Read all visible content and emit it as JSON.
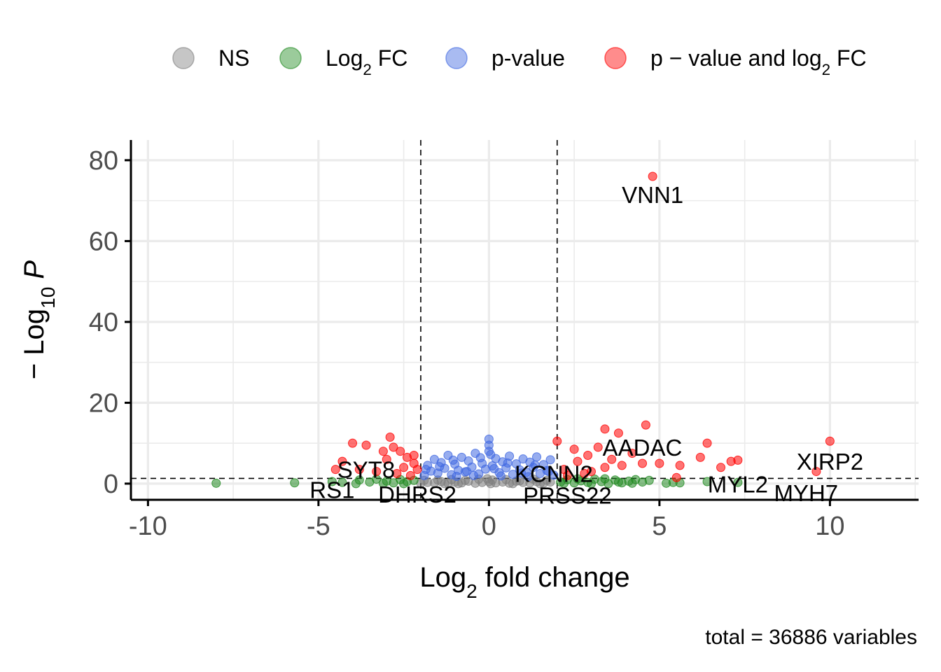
{
  "chart_data": {
    "type": "scatter",
    "xlabel": "Log",
    "xlabel_sub": "2",
    "xlabel_rest": " fold change",
    "ylabel_pre": "− Log",
    "ylabel_sub": "10",
    "ylabel_italic": "P",
    "caption": "total = 36886 variables",
    "xlim": [
      -10.5,
      12.6
    ],
    "ylim": [
      -4,
      85
    ],
    "x_ticks": [
      -10,
      -5,
      0,
      5,
      10
    ],
    "x_tick_labels": [
      "-10",
      "-5",
      "0",
      "5",
      "10"
    ],
    "y_ticks": [
      0,
      20,
      40,
      60,
      80
    ],
    "y_tick_labels": [
      "0",
      "20",
      "40",
      "60",
      "80"
    ],
    "fc_cutoff": 2,
    "p_cutoff_log10": 1.3,
    "grid": true,
    "legend_position": "top",
    "legend": [
      {
        "key": "NS",
        "text": "NS",
        "sub": "",
        "tail": "",
        "color": "#808080"
      },
      {
        "key": "FC",
        "text": "Log",
        "sub": "2",
        "tail": " FC",
        "color": "#228b22"
      },
      {
        "key": "P",
        "text": "p-value",
        "sub": "",
        "tail": "",
        "color": "#4169e1"
      },
      {
        "key": "PFC",
        "text": "p − value and log",
        "sub": "2",
        "tail": " FC",
        "color": "#ff0000"
      }
    ],
    "series": {
      "NS": [
        [
          -2.0,
          0.1
        ],
        [
          -1.8,
          0.3
        ],
        [
          -1.6,
          0.2
        ],
        [
          -1.4,
          0.5
        ],
        [
          -1.2,
          0.1
        ],
        [
          -1.0,
          0.4
        ],
        [
          -0.8,
          0.2
        ],
        [
          -0.6,
          0.6
        ],
        [
          -0.4,
          0.1
        ],
        [
          -0.2,
          0.3
        ],
        [
          0.0,
          0.5
        ],
        [
          0.2,
          0.2
        ],
        [
          0.4,
          0.4
        ],
        [
          0.6,
          0.1
        ],
        [
          0.8,
          0.6
        ],
        [
          1.0,
          0.3
        ],
        [
          1.2,
          0.2
        ],
        [
          1.4,
          0.5
        ],
        [
          1.6,
          0.1
        ],
        [
          1.8,
          0.4
        ],
        [
          -1.9,
          0.8
        ],
        [
          -1.5,
          0.9
        ],
        [
          -1.1,
          1.0
        ],
        [
          -0.7,
          0.8
        ],
        [
          -0.3,
          1.1
        ],
        [
          0.1,
          0.9
        ],
        [
          0.5,
          1.0
        ],
        [
          0.9,
          0.7
        ],
        [
          1.3,
          1.1
        ],
        [
          1.7,
          0.8
        ],
        [
          -0.05,
          1.2
        ],
        [
          0.05,
          0.0
        ],
        [
          -1.3,
          0.0
        ],
        [
          1.5,
          0.0
        ],
        [
          -0.9,
          0.0
        ],
        [
          0.7,
          0.0
        ]
      ],
      "FC": [
        [
          -8.0,
          0.1
        ],
        [
          -5.7,
          0.2
        ],
        [
          -4.6,
          0.5
        ],
        [
          -4.3,
          0.3
        ],
        [
          -3.8,
          0.9
        ],
        [
          -3.5,
          0.4
        ],
        [
          -3.3,
          1.1
        ],
        [
          -3.0,
          0.6
        ],
        [
          -2.8,
          0.2
        ],
        [
          -2.6,
          1.0
        ],
        [
          -2.4,
          0.5
        ],
        [
          -2.2,
          0.8
        ],
        [
          -3.9,
          0.0
        ],
        [
          -3.1,
          0.1
        ],
        [
          -2.5,
          0.0
        ],
        [
          2.1,
          0.4
        ],
        [
          2.3,
          1.0
        ],
        [
          2.5,
          0.2
        ],
        [
          2.7,
          0.7
        ],
        [
          2.9,
          0.3
        ],
        [
          3.1,
          1.1
        ],
        [
          3.3,
          0.5
        ],
        [
          3.5,
          0.0
        ],
        [
          3.7,
          0.9
        ],
        [
          3.9,
          0.2
        ],
        [
          4.1,
          0.6
        ],
        [
          4.3,
          1.0
        ],
        [
          4.5,
          0.4
        ],
        [
          4.7,
          0.8
        ],
        [
          5.2,
          0.1
        ],
        [
          5.4,
          0.3
        ],
        [
          5.6,
          0.2
        ],
        [
          6.4,
          0.5
        ],
        [
          7.3,
          0.3
        ],
        [
          2.2,
          0.1
        ],
        [
          2.6,
          1.2
        ],
        [
          3.0,
          0.0
        ],
        [
          3.4,
          1.2
        ],
        [
          3.8,
          0.4
        ],
        [
          4.2,
          0.1
        ]
      ],
      "P": [
        [
          -1.9,
          2.0
        ],
        [
          -1.8,
          4.5
        ],
        [
          -1.7,
          3.1
        ],
        [
          -1.6,
          6.0
        ],
        [
          -1.5,
          2.6
        ],
        [
          -1.4,
          5.2
        ],
        [
          -1.3,
          3.8
        ],
        [
          -1.2,
          7.0
        ],
        [
          -1.1,
          2.2
        ],
        [
          -1.0,
          4.8
        ],
        [
          -0.9,
          3.3
        ],
        [
          -0.8,
          6.5
        ],
        [
          -0.7,
          2.9
        ],
        [
          -0.6,
          5.6
        ],
        [
          -0.5,
          4.1
        ],
        [
          -0.4,
          7.5
        ],
        [
          -0.3,
          2.4
        ],
        [
          -0.2,
          5.0
        ],
        [
          -0.1,
          3.6
        ],
        [
          0.0,
          11.0
        ],
        [
          0.0,
          9.5
        ],
        [
          0.0,
          8.0
        ],
        [
          0.1,
          4.4
        ],
        [
          0.2,
          6.2
        ],
        [
          0.3,
          2.7
        ],
        [
          0.4,
          5.4
        ],
        [
          0.5,
          3.9
        ],
        [
          0.6,
          6.8
        ],
        [
          0.7,
          2.3
        ],
        [
          0.8,
          4.9
        ],
        [
          0.9,
          3.4
        ],
        [
          1.0,
          6.1
        ],
        [
          1.1,
          2.8
        ],
        [
          1.2,
          5.3
        ],
        [
          1.3,
          4.0
        ],
        [
          1.4,
          6.6
        ],
        [
          1.5,
          2.5
        ],
        [
          1.6,
          4.7
        ],
        [
          1.7,
          3.2
        ],
        [
          1.8,
          5.9
        ],
        [
          1.9,
          2.1
        ],
        [
          -1.85,
          3.5
        ],
        [
          -1.45,
          4.2
        ],
        [
          -1.05,
          5.8
        ],
        [
          -0.65,
          3.0
        ],
        [
          -0.25,
          6.4
        ],
        [
          0.15,
          3.7
        ],
        [
          0.55,
          5.1
        ],
        [
          0.95,
          2.6
        ],
        [
          1.35,
          4.6
        ],
        [
          1.75,
          3.0
        ],
        [
          -0.95,
          1.8
        ],
        [
          -0.45,
          2.0
        ],
        [
          0.35,
          1.9
        ],
        [
          1.15,
          1.7
        ],
        [
          0.05,
          7.2
        ]
      ],
      "PFC": [
        [
          4.8,
          76.0
        ],
        [
          10.0,
          10.5
        ],
        [
          9.6,
          3.0
        ],
        [
          4.6,
          14.5
        ],
        [
          3.4,
          13.5
        ],
        [
          3.8,
          12.5
        ],
        [
          2.0,
          10.5
        ],
        [
          2.5,
          8.5
        ],
        [
          2.9,
          7.0
        ],
        [
          3.2,
          9.0
        ],
        [
          3.6,
          6.0
        ],
        [
          3.9,
          4.5
        ],
        [
          4.2,
          7.5
        ],
        [
          4.5,
          5.0
        ],
        [
          5.0,
          5.0
        ],
        [
          5.6,
          4.5
        ],
        [
          6.4,
          10.0
        ],
        [
          6.2,
          6.5
        ],
        [
          6.8,
          4.0
        ],
        [
          7.1,
          5.5
        ],
        [
          7.3,
          5.8
        ],
        [
          2.2,
          3.5
        ],
        [
          2.6,
          5.5
        ],
        [
          3.0,
          3.0
        ],
        [
          3.4,
          4.0
        ],
        [
          2.3,
          2.0
        ],
        [
          2.8,
          2.5
        ],
        [
          5.5,
          1.5
        ],
        [
          -2.9,
          11.5
        ],
        [
          -3.6,
          9.5
        ],
        [
          -4.0,
          10.0
        ],
        [
          -2.8,
          9.0
        ],
        [
          -2.6,
          8.0
        ],
        [
          -2.4,
          6.5
        ],
        [
          -2.2,
          5.0
        ],
        [
          -2.1,
          3.5
        ],
        [
          -2.5,
          4.0
        ],
        [
          -3.0,
          6.0
        ],
        [
          -3.3,
          3.0
        ],
        [
          -3.8,
          3.5
        ],
        [
          -4.3,
          5.5
        ],
        [
          -4.5,
          3.5
        ],
        [
          -2.3,
          2.0
        ],
        [
          -2.7,
          2.5
        ],
        [
          -3.1,
          8.0
        ],
        [
          -2.2,
          7.0
        ]
      ]
    },
    "labels": [
      {
        "text": "VNN1",
        "x": 4.8,
        "y": 71.5,
        "anchor": "middle"
      },
      {
        "text": "AADAC",
        "x": 4.5,
        "y": 9.0,
        "anchor": "middle"
      },
      {
        "text": "XIRP2",
        "x": 10.0,
        "y": 5.5,
        "anchor": "middle"
      },
      {
        "text": "SYT8",
        "x": -3.6,
        "y": 3.5,
        "anchor": "middle"
      },
      {
        "text": "KCNN2",
        "x": 1.9,
        "y": 2.5,
        "anchor": "middle"
      },
      {
        "text": "MYL2",
        "x": 7.3,
        "y": -0.1,
        "anchor": "middle"
      },
      {
        "text": "MYH7",
        "x": 9.3,
        "y": -2.3,
        "anchor": "middle"
      },
      {
        "text": "RS1",
        "x": -4.6,
        "y": -1.5,
        "anchor": "middle"
      },
      {
        "text": "DHRS2",
        "x": -2.1,
        "y": -2.6,
        "anchor": "middle"
      },
      {
        "text": "PRSS22",
        "x": 2.3,
        "y": -2.9,
        "anchor": "middle"
      }
    ]
  }
}
